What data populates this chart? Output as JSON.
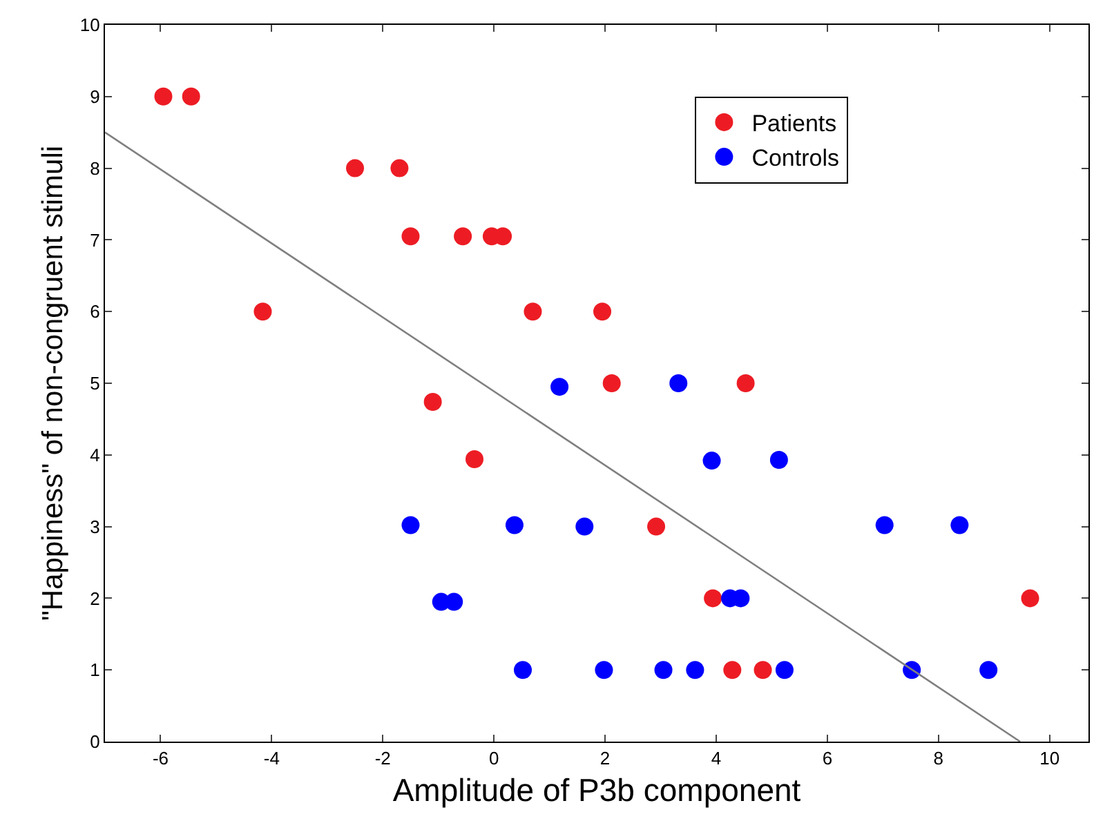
{
  "chart_data": {
    "type": "scatter",
    "xlabel": "Amplitude of P3b component",
    "ylabel": "\"Happiness\" of non-congruent stimuli",
    "xlim": [
      -7,
      10.7
    ],
    "xticks": [
      -6,
      -4,
      -2,
      0,
      2,
      4,
      6,
      8,
      10
    ],
    "ylim": [
      0,
      10
    ],
    "yticks": [
      0,
      1,
      2,
      3,
      4,
      5,
      6,
      7,
      8,
      9,
      10
    ],
    "grid": false,
    "legend": "top right",
    "marker": "circle",
    "series": [
      {
        "name": "Patients",
        "color": "#ed1c24",
        "x": [
          -5.95,
          -5.45,
          -4.16,
          -2.5,
          -1.7,
          -1.5,
          -0.56,
          -0.04,
          0.16,
          0.7,
          1.95,
          2.12,
          -1.1,
          -0.35,
          2.92,
          3.94,
          4.29,
          4.53,
          4.84,
          9.65
        ],
        "values": [
          9,
          9,
          6,
          8,
          8,
          7.05,
          7.05,
          7.05,
          7.05,
          6,
          6,
          5,
          4.74,
          3.94,
          3,
          2,
          1,
          5,
          1,
          2
        ]
      },
      {
        "name": "Controls",
        "color": "#0000ff",
        "x": [
          1.18,
          3.32,
          3.92,
          5.13,
          -1.5,
          0.37,
          1.63,
          7.03,
          8.38,
          -0.95,
          -0.72,
          4.25,
          4.44,
          0.52,
          1.98,
          3.05,
          3.62,
          5.23,
          7.52,
          8.9
        ],
        "values": [
          4.95,
          5,
          3.92,
          3.93,
          3.02,
          3.02,
          3,
          3.02,
          3.02,
          1.95,
          1.95,
          2,
          2,
          1,
          1,
          1,
          1,
          1,
          1,
          1
        ]
      },
      {
        "type": "line",
        "marker": "none",
        "color": "#808080",
        "x": [
          -7,
          9.47
        ],
        "values": [
          8.5,
          0
        ]
      }
    ]
  }
}
